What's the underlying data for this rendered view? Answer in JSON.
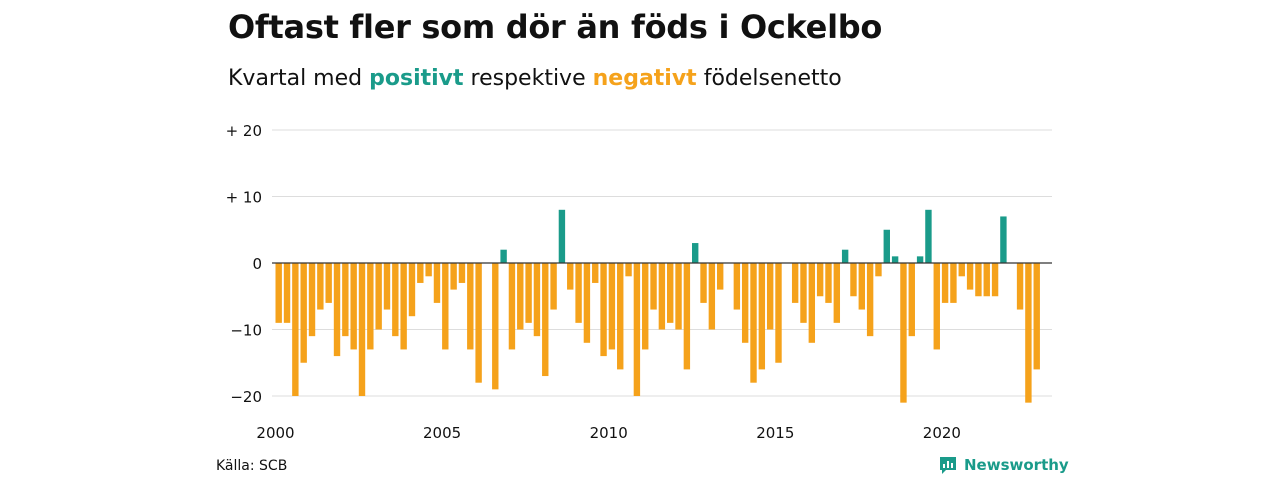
{
  "header": {
    "title": "Oftast fler som dör än föds i Ockelbo",
    "subtitle_prefix": "Kvartal med ",
    "subtitle_pos": "positivt",
    "subtitle_mid": " respektive ",
    "subtitle_neg": "negativt",
    "subtitle_suffix": " födelsenetto"
  },
  "footer": {
    "source": "Källa: SCB",
    "brand": "Newsworthy",
    "brand_icon": "newsworthy-logo-icon"
  },
  "colors": {
    "positive": "#1a9b8a",
    "negative": "#f5a21b",
    "grid": "#dddddd",
    "zero_line": "#333333"
  },
  "chart_data": {
    "type": "bar",
    "title": "Oftast fler som dör än föds i Ockelbo",
    "subtitle": "Kvartal med positivt respektive negativt födelsenetto",
    "xlabel": "",
    "ylabel": "",
    "ylim": [
      -22,
      20
    ],
    "yticks": [
      {
        "value": 20,
        "label": "+ 20"
      },
      {
        "value": 10,
        "label": "+ 10"
      },
      {
        "value": 0,
        "label": "0"
      },
      {
        "value": -10,
        "label": "−10"
      },
      {
        "value": -20,
        "label": "−20"
      }
    ],
    "xticks": [
      "2000",
      "2005",
      "2010",
      "2015",
      "2020"
    ],
    "x_start_year": 2000,
    "grid": true,
    "series": [
      {
        "values": [
          -9,
          -9,
          -20,
          -15,
          -11,
          -7,
          -6,
          -14,
          -11,
          -13,
          -20,
          -13,
          -10,
          -7,
          -11,
          -13,
          -8,
          -3,
          -2,
          -6,
          -13,
          -4,
          -3,
          -13,
          -18,
          0,
          -19,
          2,
          -13,
          -10,
          -9,
          -11,
          -17,
          -7,
          8,
          -4,
          -9,
          -12,
          -3,
          -14,
          -13,
          -16,
          -2,
          -20,
          -13,
          -7,
          -10,
          -9,
          -10,
          -16,
          3,
          -6,
          -10,
          -4,
          0,
          -7,
          -12,
          -18,
          -16,
          -10,
          -15,
          0,
          -6,
          -9,
          -12,
          -5,
          -6,
          -9,
          2,
          -5,
          -7,
          -11,
          -2,
          5,
          1,
          -21,
          -11,
          1,
          8,
          -13,
          -6,
          -6,
          -2,
          -4,
          -5,
          -5,
          -5,
          7,
          0,
          -7,
          -21,
          -16
        ]
      }
    ]
  }
}
